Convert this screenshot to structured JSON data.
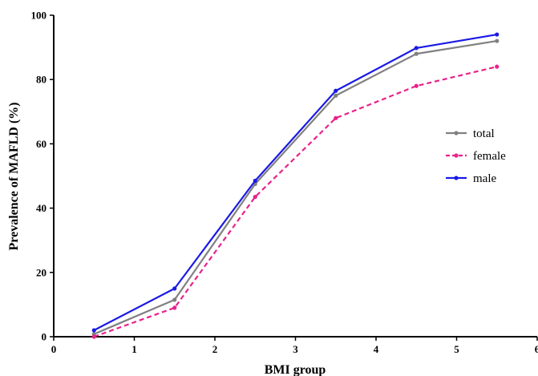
{
  "chart_data": {
    "type": "line",
    "title": "",
    "xlabel": "BMI group",
    "ylabel": "Prevalence of MAFLD (%)",
    "xlim": [
      0,
      6
    ],
    "ylim": [
      0,
      100
    ],
    "xticks": [
      0,
      1,
      2,
      3,
      4,
      5,
      6
    ],
    "xtick_labels": [
      "0",
      "1",
      "2",
      "3",
      "4",
      "5",
      "6"
    ],
    "yticks": [
      0,
      20,
      40,
      60,
      80,
      100
    ],
    "ytick_labels": [
      "0",
      "20",
      "40",
      "60",
      "80",
      "100"
    ],
    "x": [
      0.5,
      1.5,
      2.5,
      3.5,
      4.5,
      5.5
    ],
    "grid": false,
    "legend_position": "right",
    "series": [
      {
        "name": "total",
        "values": [
          0.8,
          11.5,
          47.5,
          75,
          88,
          92
        ],
        "color": "#808080",
        "line_style": "solid"
      },
      {
        "name": "female",
        "values": [
          0,
          9,
          43.5,
          68,
          78,
          84
        ],
        "color": "#e8228a",
        "line_style": "dashed"
      },
      {
        "name": "male",
        "values": [
          2,
          15,
          48.5,
          76.5,
          89.8,
          94
        ],
        "color": "#1a1ae6",
        "line_style": "solid"
      }
    ]
  }
}
